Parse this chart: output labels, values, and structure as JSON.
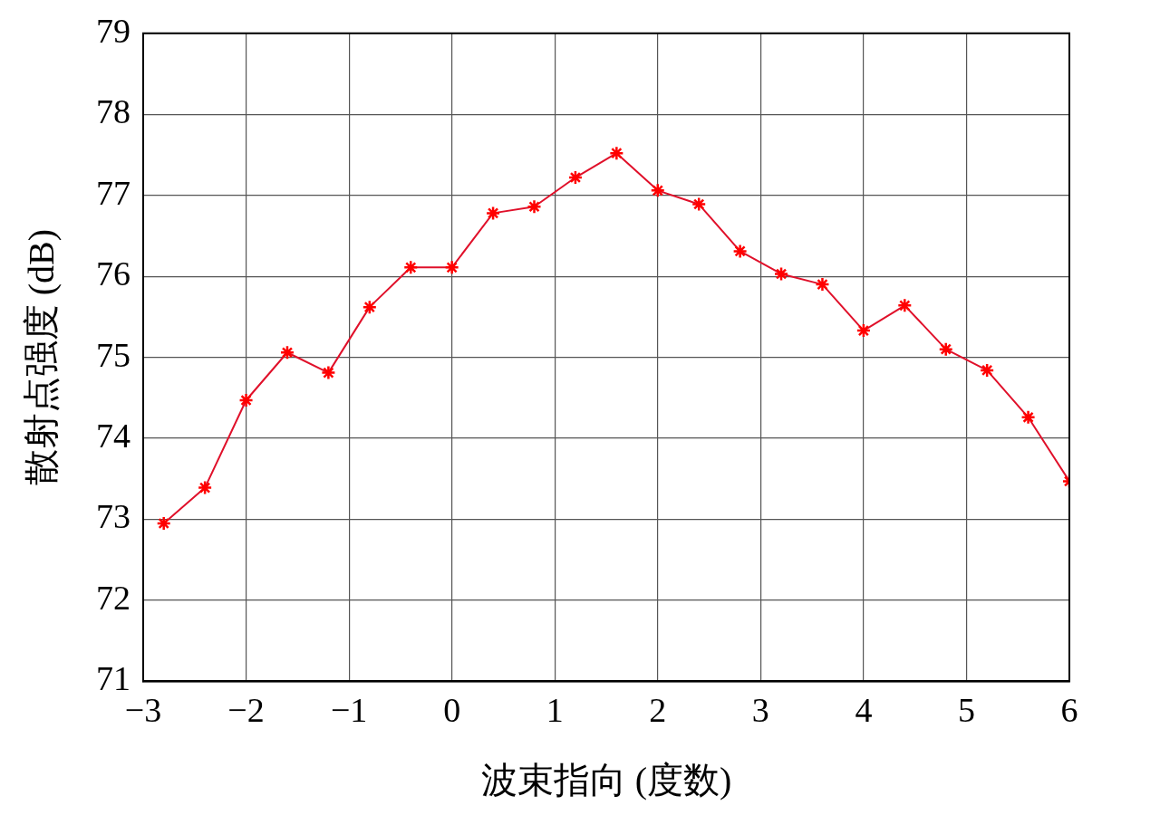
{
  "chart_data": {
    "type": "line",
    "xlabel": "波束指向 (度数)",
    "ylabel": "散射点强度 (dB)",
    "x": [
      -2.8,
      -2.4,
      -2.0,
      -1.6,
      -1.2,
      -0.8,
      -0.4,
      0,
      0.4,
      0.8,
      1.2,
      1.6,
      2.0,
      2.4,
      2.8,
      3.2,
      3.6,
      4.0,
      4.4,
      4.8,
      5.2,
      5.6,
      6.0
    ],
    "series": [
      {
        "color": "#e0102a",
        "values": [
          72.95,
          73.39,
          74.47,
          75.06,
          74.81,
          75.62,
          76.11,
          76.11,
          76.78,
          76.86,
          77.22,
          77.52,
          77.06,
          76.89,
          76.31,
          76.03,
          75.9,
          75.33,
          75.64,
          75.1,
          74.84,
          74.26,
          73.47
        ]
      }
    ],
    "xlim": [
      -3,
      6
    ],
    "xticks": [
      -3,
      -2,
      -1,
      0,
      1,
      2,
      3,
      4,
      5,
      6
    ],
    "ylim": [
      71,
      79
    ],
    "yticks": [
      71,
      72,
      73,
      74,
      75,
      76,
      77,
      78,
      79
    ],
    "grid": true,
    "legend": false,
    "marker": "cross",
    "line_style": "solid"
  }
}
